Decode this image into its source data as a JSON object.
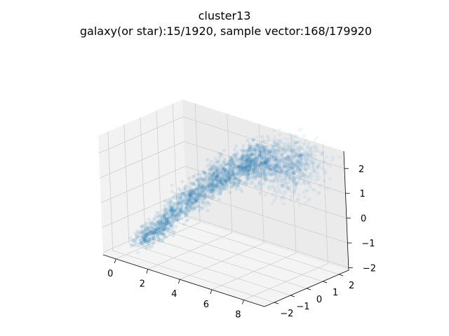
{
  "chart_data": {
    "type": "scatter",
    "projection": "3d",
    "title": "cluster13",
    "subtitle": "galaxy(or star):15/1920, sample vector:168/179920",
    "xlabel": "",
    "ylabel": "",
    "zlabel": "",
    "x_ticks": [
      "0",
      "2",
      "4",
      "6",
      "8"
    ],
    "y_ticks": [
      "−2",
      "−1",
      "0",
      "1",
      "2"
    ],
    "z_ticks": [
      "−2",
      "−1",
      "0",
      "1",
      "2"
    ],
    "xlim": [
      -0.8,
      9.3
    ],
    "ylim": [
      -2.6,
      2.6
    ],
    "zlim": [
      -2.1,
      2.7
    ],
    "grid": true,
    "point_color": "#1f77b4",
    "point_alpha": 0.05,
    "series": [
      {
        "points_described_by_trend": true,
        "trend_x": [
          0.5,
          1.5,
          2.5,
          3.5,
          4.5,
          5.5,
          6.5,
          7.5,
          8.3
        ],
        "trend_y": [
          -1.6,
          -1.3,
          -0.8,
          -0.2,
          0.4,
          0.8,
          1.0,
          1.1,
          1.2
        ],
        "trend_z": [
          -1.6,
          -0.9,
          0.1,
          0.9,
          1.6,
          2.0,
          2.2,
          2.1,
          2.0
        ],
        "spread": 0.45,
        "n_points": 168
      }
    ]
  }
}
